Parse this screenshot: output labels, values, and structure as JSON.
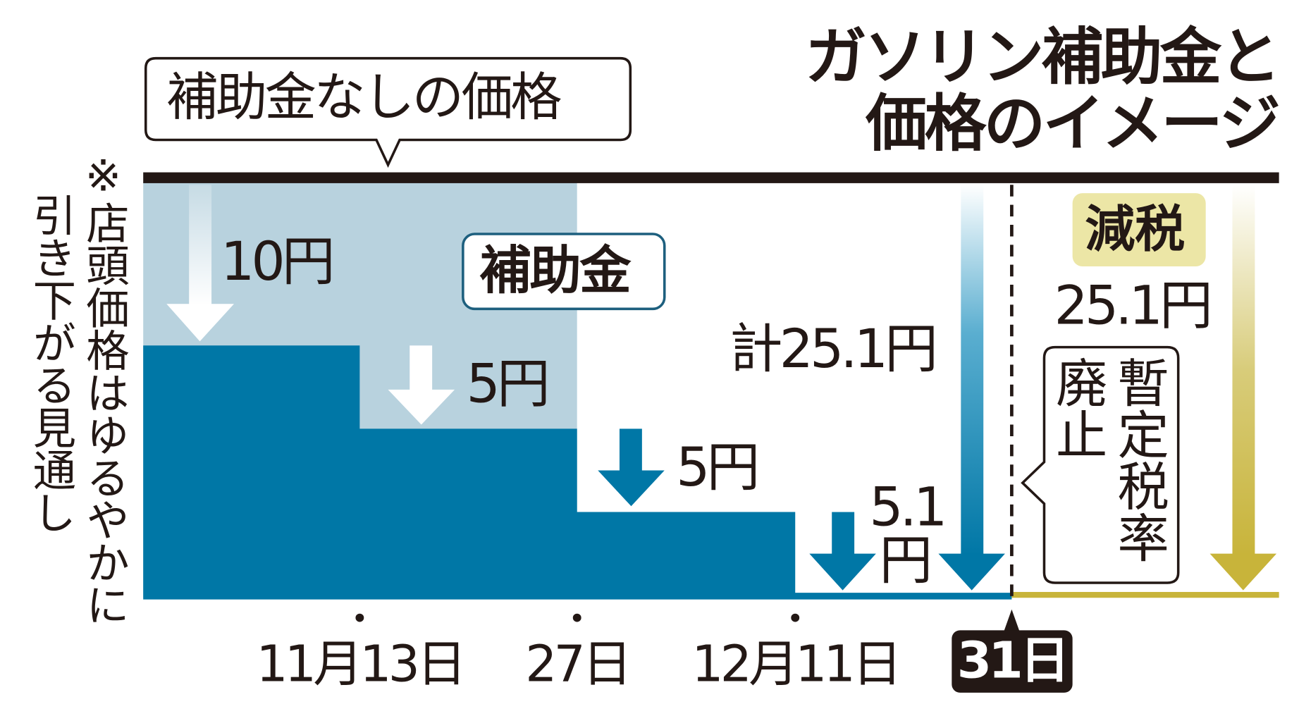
{
  "title": {
    "line1": "ガソリン補助金と",
    "line2": "価格のイメージ"
  },
  "note": {
    "col1": "※店頭価格はゆるやかに",
    "col2": "引き下がる見通し"
  },
  "callout_no_subsidy": "補助金なしの価格",
  "subsidy_label": "補助金",
  "steps": [
    {
      "label": "10円",
      "amount": 10
    },
    {
      "label": "5円",
      "amount": 5
    },
    {
      "label": "5円",
      "amount": 5
    },
    {
      "label_line1": "5.1",
      "label_line2": "円",
      "amount": 5.1
    }
  ],
  "total_label": "計25.1円",
  "tax_cut": {
    "badge": "減税",
    "amount_label": "25.1円",
    "callout_col1": "暫定税率",
    "callout_col2": "廃止"
  },
  "dates": [
    "11月13日",
    "27日",
    "12月11日",
    "31日"
  ],
  "colors": {
    "subsidy_dark": "#0077a6",
    "no_subsidy_light": "#b8d2de",
    "tax_gold": "#c8b43a",
    "tax_badge": "#ece6a6",
    "baseline": "#231815"
  }
}
